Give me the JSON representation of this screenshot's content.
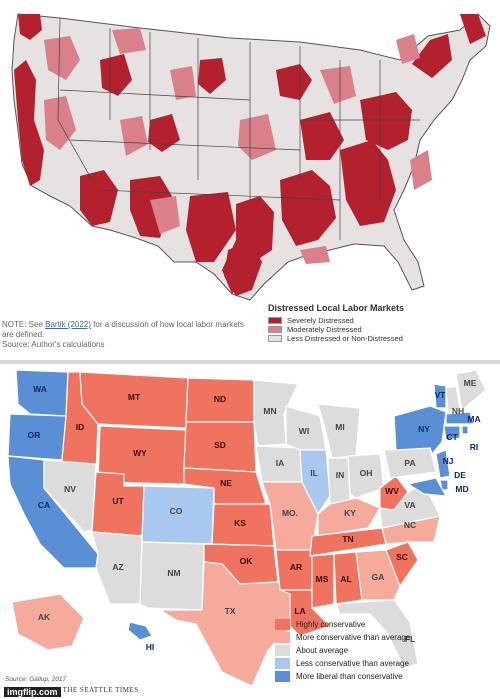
{
  "top_map": {
    "legend_title": "Distressed Local Labor Markets",
    "legend_items": [
      {
        "label": "Severely Distressed",
        "color": "#b3202e"
      },
      {
        "label": "Moderately Distressed",
        "color": "#d9808a"
      },
      {
        "label": "Less Distressed or Non-Distressed",
        "color": "#e7e2e2"
      }
    ],
    "note_prefix": "NOTE: See ",
    "note_link": "Bartik (2022)",
    "note_suffix": " for a discussion of how local labor markets are defined.",
    "source": "Source: Author's calculations"
  },
  "bottom_map": {
    "legend_items": [
      {
        "label": "Highly conservative",
        "color": "#f0735f"
      },
      {
        "label": "More conservative than average",
        "color": "#f6aa9c"
      },
      {
        "label": "About average",
        "color": "#dcdcdc"
      },
      {
        "label": "Less conservative than average",
        "color": "#a9c8ef"
      },
      {
        "label": "More liberal than conservative",
        "color": "#5a8fd6"
      }
    ],
    "source": "Source: Gallup, 2017",
    "brand": "/ THE SEATTLE TIMES",
    "watermark": "imgflip.com",
    "states": [
      {
        "abbr": "WA",
        "cat": 4
      },
      {
        "abbr": "OR",
        "cat": 4
      },
      {
        "abbr": "CA",
        "cat": 4
      },
      {
        "abbr": "ID",
        "cat": 0
      },
      {
        "abbr": "NV",
        "cat": 2
      },
      {
        "abbr": "MT",
        "cat": 0
      },
      {
        "abbr": "WY",
        "cat": 0
      },
      {
        "abbr": "UT",
        "cat": 0
      },
      {
        "abbr": "AZ",
        "cat": 2
      },
      {
        "abbr": "CO",
        "cat": 3
      },
      {
        "abbr": "NM",
        "cat": 2
      },
      {
        "abbr": "ND",
        "cat": 0
      },
      {
        "abbr": "SD",
        "cat": 0
      },
      {
        "abbr": "NE",
        "cat": 0
      },
      {
        "abbr": "KS",
        "cat": 0
      },
      {
        "abbr": "OK",
        "cat": 0
      },
      {
        "abbr": "TX",
        "cat": 1
      },
      {
        "abbr": "MN",
        "cat": 2
      },
      {
        "abbr": "IA",
        "cat": 2
      },
      {
        "abbr": "MO.",
        "cat": 1
      },
      {
        "abbr": "AR",
        "cat": 0
      },
      {
        "abbr": "LA",
        "cat": 0
      },
      {
        "abbr": "WI",
        "cat": 2
      },
      {
        "abbr": "IL",
        "cat": 3
      },
      {
        "abbr": "MI",
        "cat": 2
      },
      {
        "abbr": "IN",
        "cat": 2
      },
      {
        "abbr": "OH",
        "cat": 2
      },
      {
        "abbr": "KY",
        "cat": 1
      },
      {
        "abbr": "TN",
        "cat": 0
      },
      {
        "abbr": "MS",
        "cat": 0
      },
      {
        "abbr": "AL",
        "cat": 0
      },
      {
        "abbr": "GA",
        "cat": 1
      },
      {
        "abbr": "FL",
        "cat": 2
      },
      {
        "abbr": "SC",
        "cat": 0
      },
      {
        "abbr": "NC",
        "cat": 1
      },
      {
        "abbr": "VA",
        "cat": 2
      },
      {
        "abbr": "WV",
        "cat": 0
      },
      {
        "abbr": "PA",
        "cat": 2
      },
      {
        "abbr": "NY",
        "cat": 4
      },
      {
        "abbr": "VT",
        "cat": 4
      },
      {
        "abbr": "NH",
        "cat": 2
      },
      {
        "abbr": "ME",
        "cat": 2
      },
      {
        "abbr": "MA",
        "cat": 4
      },
      {
        "abbr": "CT",
        "cat": 4
      },
      {
        "abbr": "RI",
        "cat": 4
      },
      {
        "abbr": "NJ",
        "cat": 4
      },
      {
        "abbr": "DE",
        "cat": 4
      },
      {
        "abbr": "MD",
        "cat": 4
      },
      {
        "abbr": "AK",
        "cat": 1
      },
      {
        "abbr": "HI",
        "cat": 4
      }
    ]
  }
}
